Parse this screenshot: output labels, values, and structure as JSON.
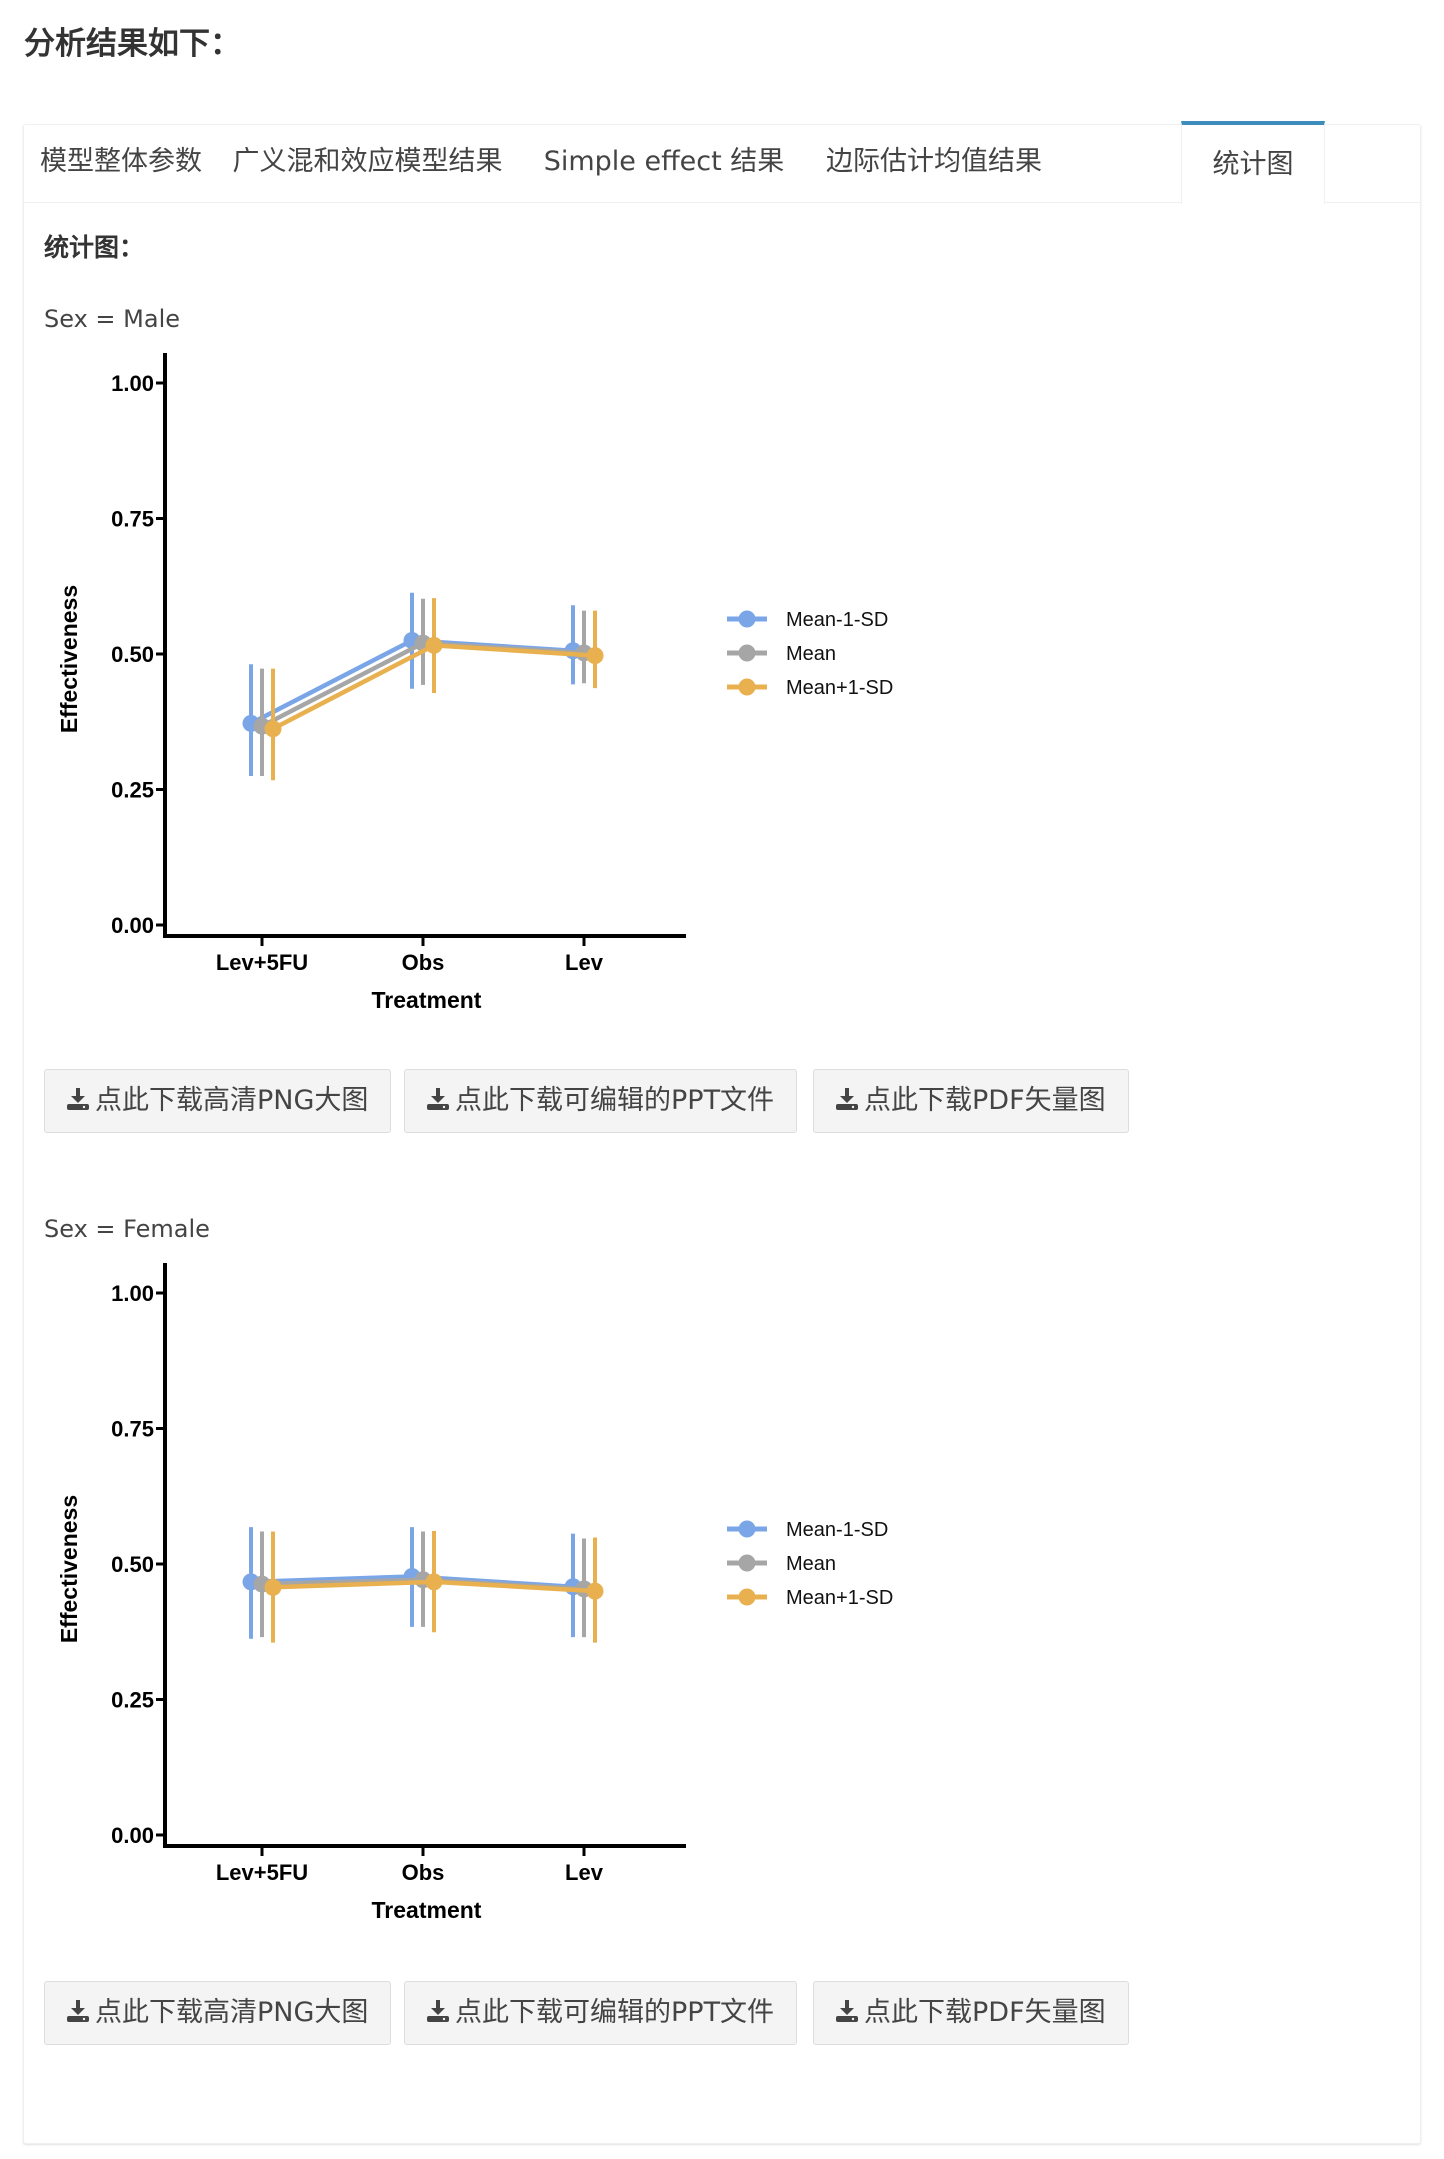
{
  "page": {
    "title": "分析结果如下："
  },
  "tabs": [
    {
      "label": "模型整体参数",
      "active": false
    },
    {
      "label": "广义混和效应模型结果",
      "active": false
    },
    {
      "label": "Simple effect 结果",
      "active": false
    },
    {
      "label": "边际估计均值结果",
      "active": false
    },
    {
      "label": "统计图",
      "active": true
    }
  ],
  "content": {
    "section_title": "统计图：",
    "buttons": {
      "png": "点此下载高清PNG大图",
      "ppt": "点此下载可编辑的PPT文件",
      "pdf": "点此下载PDF矢量图",
      "icon": "download-icon"
    }
  },
  "colors": {
    "accent": "#3c8dbc",
    "series": [
      "#7aa6e8",
      "#a6a6a6",
      "#e8b04e"
    ]
  },
  "chart_data": [
    {
      "type": "line",
      "panel_label": "Sex = Male",
      "xlabel": "Treatment",
      "ylabel": "Effectiveness",
      "ylim": [
        0,
        1
      ],
      "yticks": [
        0,
        0.25,
        0.5,
        0.75,
        1.0
      ],
      "ytick_labels": [
        "0.00",
        "0.25",
        "0.50",
        "0.75",
        "1.00"
      ],
      "categories": [
        "Lev+5FU",
        "Obs",
        "Lev"
      ],
      "legend_position": "right",
      "grid": false,
      "series": [
        {
          "name": "Mean-1-SD",
          "values": [
            0.372,
            0.525,
            0.506
          ],
          "lower": [
            0.275,
            0.436,
            0.444
          ],
          "upper": [
            0.481,
            0.613,
            0.59
          ]
        },
        {
          "name": "Mean",
          "values": [
            0.367,
            0.52,
            0.502
          ],
          "lower": [
            0.275,
            0.443,
            0.446
          ],
          "upper": [
            0.473,
            0.602,
            0.58
          ]
        },
        {
          "name": "Mean+1-SD",
          "values": [
            0.362,
            0.516,
            0.497
          ],
          "lower": [
            0.267,
            0.428,
            0.437
          ],
          "upper": [
            0.473,
            0.603,
            0.58
          ]
        }
      ]
    },
    {
      "type": "line",
      "panel_label": "Sex = Female",
      "xlabel": "Treatment",
      "ylabel": "Effectiveness",
      "ylim": [
        0,
        1
      ],
      "yticks": [
        0,
        0.25,
        0.5,
        0.75,
        1.0
      ],
      "ytick_labels": [
        "0.00",
        "0.25",
        "0.50",
        "0.75",
        "1.00"
      ],
      "categories": [
        "Lev+5FU",
        "Obs",
        "Lev"
      ],
      "legend_position": "right",
      "grid": false,
      "series": [
        {
          "name": "Mean-1-SD",
          "values": [
            0.467,
            0.477,
            0.458
          ],
          "lower": [
            0.362,
            0.384,
            0.365
          ],
          "upper": [
            0.568,
            0.568,
            0.556
          ]
        },
        {
          "name": "Mean",
          "values": [
            0.463,
            0.471,
            0.454
          ],
          "lower": [
            0.365,
            0.384,
            0.365
          ],
          "upper": [
            0.56,
            0.56,
            0.547
          ]
        },
        {
          "name": "Mean+1-SD",
          "values": [
            0.457,
            0.467,
            0.45
          ],
          "lower": [
            0.355,
            0.374,
            0.355
          ],
          "upper": [
            0.56,
            0.561,
            0.549
          ]
        }
      ]
    }
  ]
}
